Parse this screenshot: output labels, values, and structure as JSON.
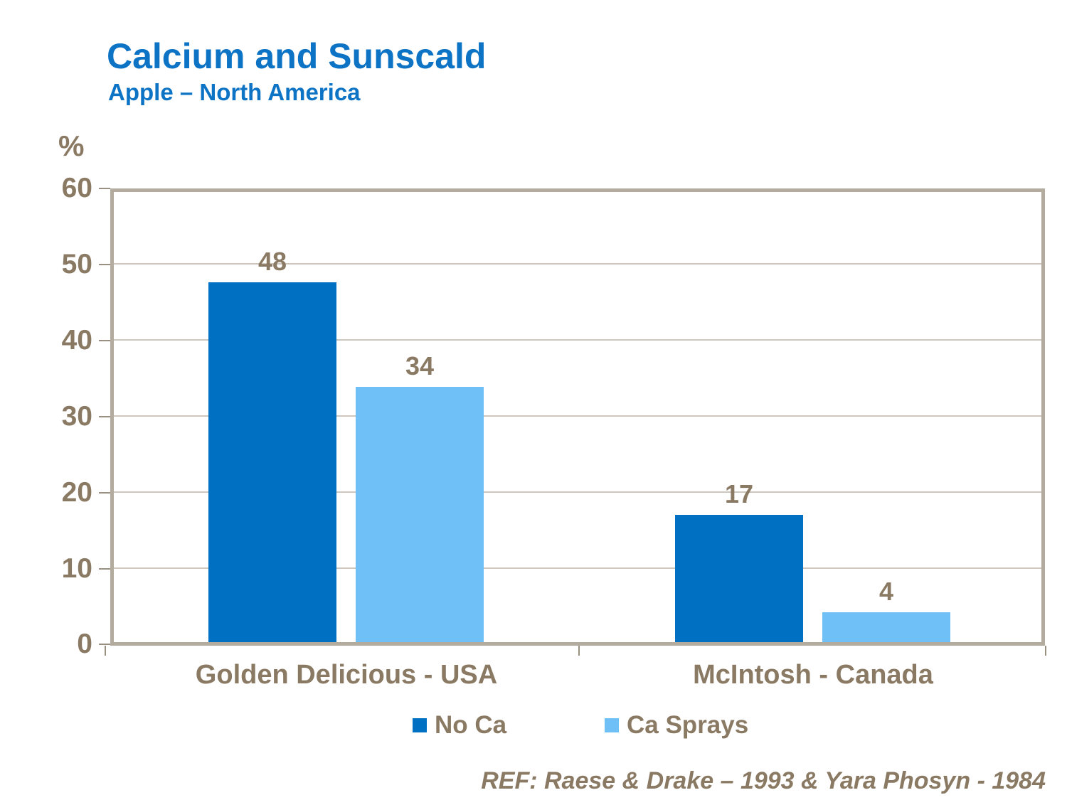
{
  "header": {
    "title": "Calcium and Sunscald",
    "subtitle": "Apple – North America"
  },
  "footer": {
    "reference": "REF: Raese & Drake – 1993 & Yara Phosyn - 1984"
  },
  "colors": {
    "heading_blue": "#0d73c5",
    "chart_text_taupe": "#8a7963",
    "plot_border": "#b4ab9f",
    "gridline": "#cdc7bd",
    "tick": "#9a9082",
    "background": "#ffffff",
    "no_ca_bar": "#0070c3",
    "ca_sprays_bar": "#6ec0f7"
  },
  "chart_data": {
    "type": "bar",
    "title": "Calcium and Sunscald",
    "subtitle": "Apple – North America",
    "xlabel": "",
    "ylabel": "%",
    "ylim": [
      0,
      60
    ],
    "ytick_interval": 10,
    "yticks": [
      60,
      50,
      40,
      30,
      20,
      10,
      0
    ],
    "grid": true,
    "legend_position": "bottom-center",
    "value_labels": true,
    "categories": [
      "Golden Delicious - USA",
      "McIntosh - Canada"
    ],
    "series": [
      {
        "name": "No Ca",
        "color": "#0070c3",
        "values": [
          48,
          17
        ]
      },
      {
        "name": "Ca Sprays",
        "color": "#6ec0f7",
        "values": [
          34,
          4
        ]
      }
    ]
  }
}
